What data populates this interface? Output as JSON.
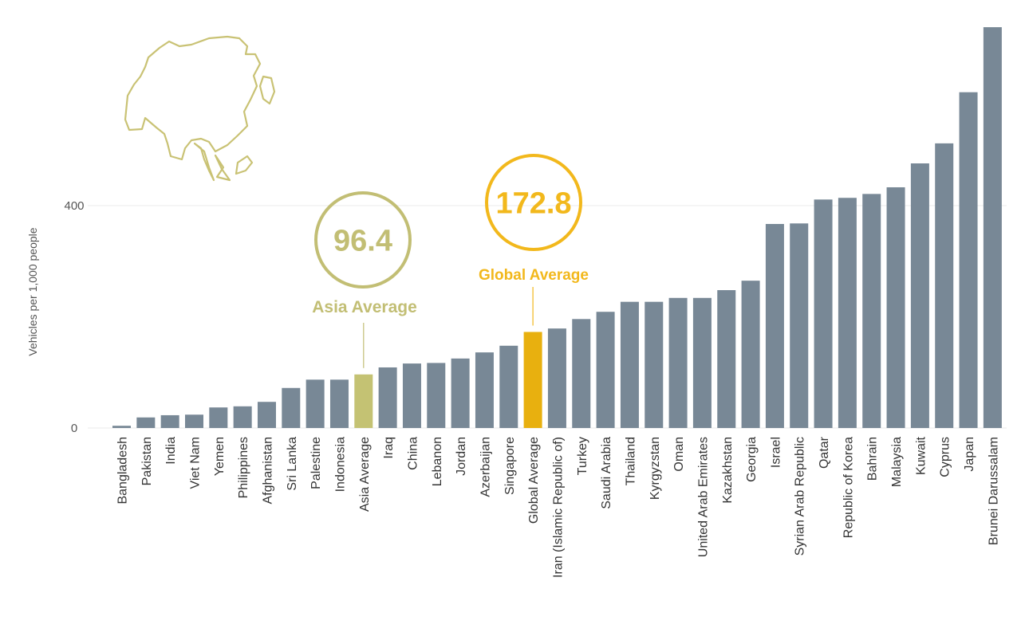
{
  "chart_data": {
    "type": "bar",
    "title": "",
    "xlabel": "",
    "ylabel": "Vehicles per 1,000 people",
    "ylim": [
      0,
      720
    ],
    "yticks": [
      0,
      400
    ],
    "grid": true,
    "categories": [
      "Bangladesh",
      "Pakistan",
      "India",
      "Viet Nam",
      "Yemen",
      "Philippines",
      "Afghanistan",
      "Sri Lanka",
      "Palestine",
      "Indonesia",
      "Asia Average",
      "Iraq",
      "China",
      "Lebanon",
      "Jordan",
      "Azerbaijan",
      "Singapore",
      "Global Average",
      "Iran (Islamic Republic of)",
      "Turkey",
      "Saudi Arabia",
      "Thailand",
      "Kyrgyzstan",
      "Oman",
      "United Arab Emirates",
      "Kazakhstan",
      "Georgia",
      "Israel",
      "Syrian Arab Republic",
      "Qatar",
      "Republic of Korea",
      "Bahrain",
      "Malaysia",
      "Kuwait",
      "Cyprus",
      "Japan",
      "Brunei Darussalam"
    ],
    "values": [
      4,
      19,
      23,
      24,
      37,
      39,
      47,
      72,
      87,
      87,
      96.4,
      109,
      116,
      117,
      125,
      136,
      148,
      172.8,
      179,
      196,
      209,
      227,
      227,
      234,
      234,
      248,
      265,
      367,
      368,
      411,
      414,
      421,
      433,
      476,
      512,
      604,
      721
    ],
    "colors": {
      "default": "#788896",
      "Asia Average": "#c4c273",
      "Global Average": "#e8b00f"
    },
    "annotations": [
      {
        "category": "Asia Average",
        "value_label": "96.4",
        "label": "Asia Average",
        "color": "#c2be74"
      },
      {
        "category": "Global Average",
        "value_label": "172.8",
        "label": "Global Average",
        "color": "#f2b81c"
      }
    ]
  },
  "decoration": {
    "icon": "asia-map-outline-icon",
    "color": "#c9c274"
  }
}
